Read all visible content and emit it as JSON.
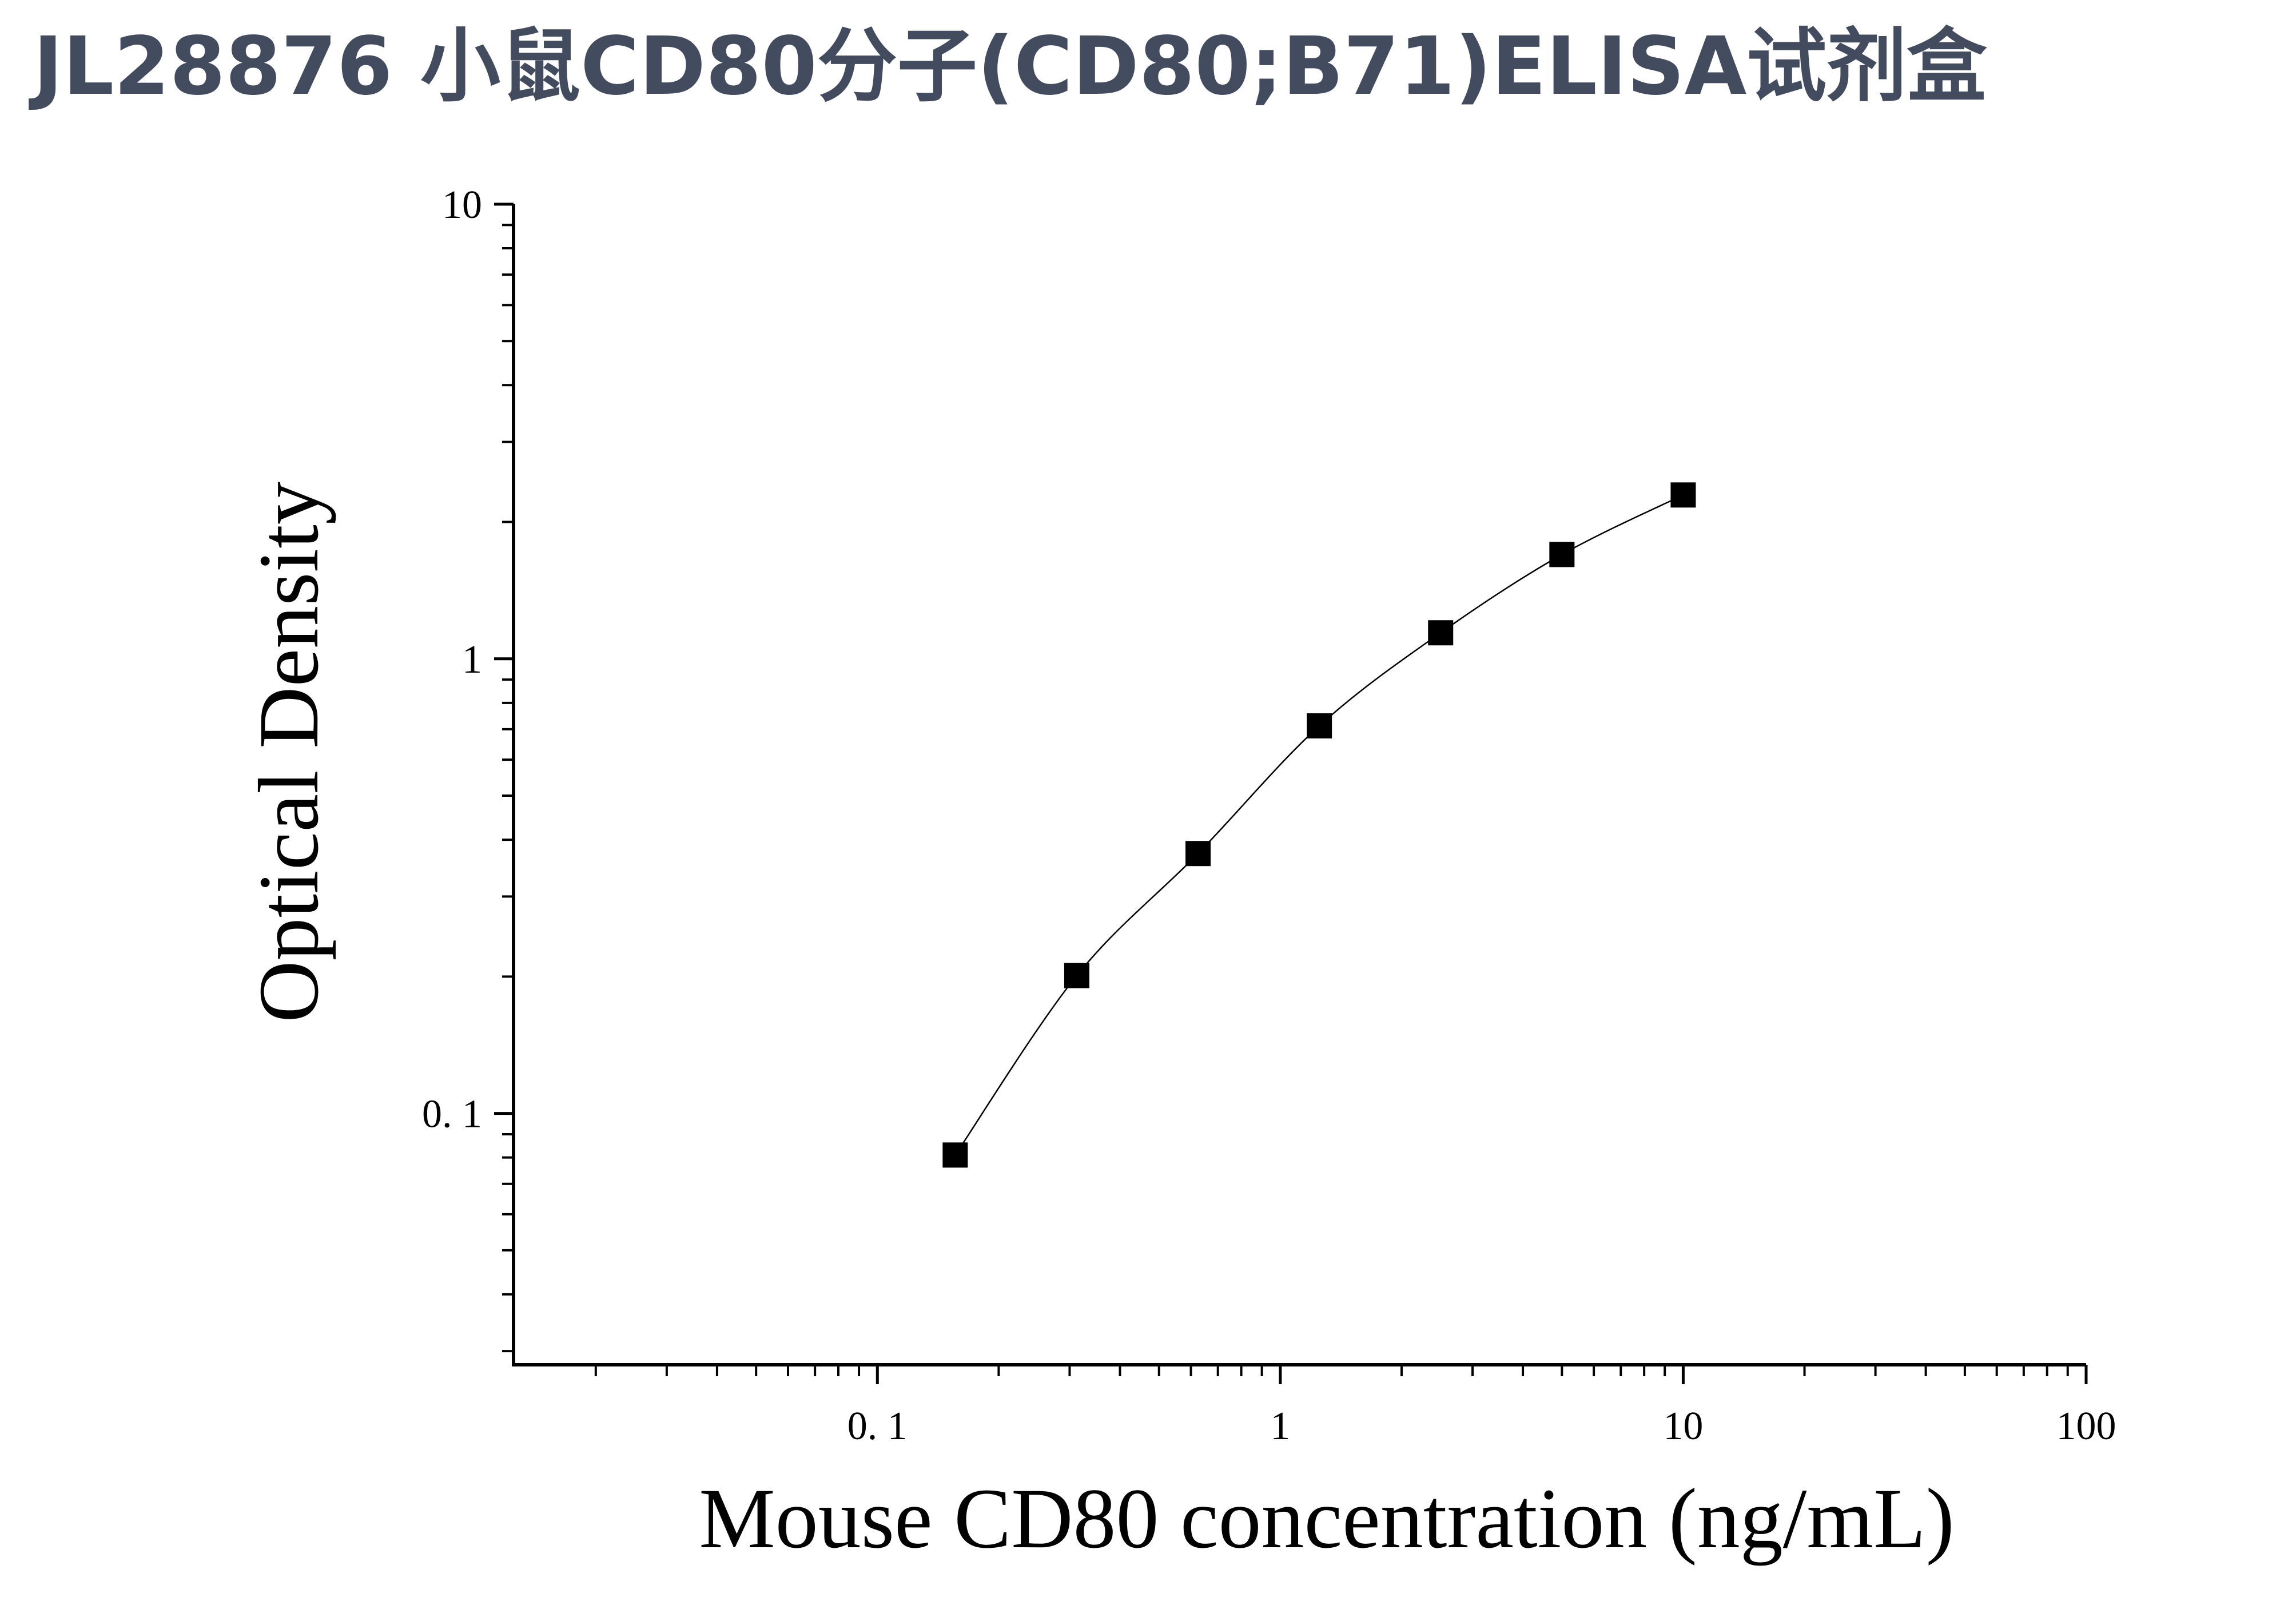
{
  "title": "JL28876 小鼠CD80分子(CD80;B71)ELISA试剂盒",
  "chart_data": {
    "type": "scatter",
    "xlabel": "Mouse CD80 concentration (ng/mL)",
    "ylabel": "Optical Density",
    "xscale": "log",
    "yscale": "log",
    "xlim": [
      0.0125,
      100
    ],
    "ylim": [
      0.028,
      10
    ],
    "x_ticks": [
      0.1,
      1,
      10,
      100
    ],
    "x_tick_labels": [
      "0. 1",
      "1",
      "10",
      "100"
    ],
    "y_ticks": [
      0.1,
      1,
      10
    ],
    "y_tick_labels": [
      "0. 1",
      "1",
      "10"
    ],
    "grid": false,
    "legend": "none",
    "marker": "square",
    "marker_color": "#000000",
    "curve": "fitted smooth line through points",
    "series": [
      {
        "x": [
          0.156,
          0.3125,
          0.625,
          1.25,
          2.5,
          5,
          10
        ],
        "y": [
          0.081,
          0.201,
          0.373,
          0.712,
          1.141,
          1.696,
          2.293
        ]
      }
    ]
  }
}
